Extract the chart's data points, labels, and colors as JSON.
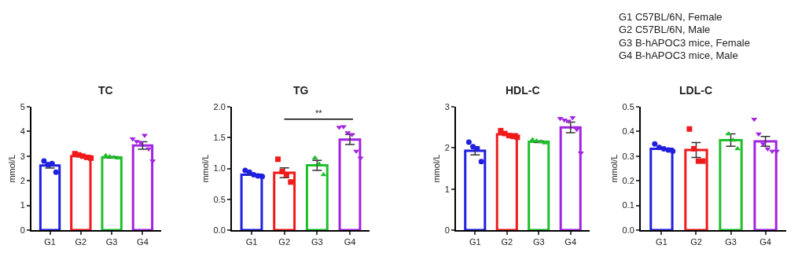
{
  "chart_data": [
    {
      "type": "bar",
      "title": "TC",
      "ylabel": "mmol/L",
      "categories": [
        "G1",
        "G2",
        "G3",
        "G4"
      ],
      "ylim": [
        0,
        5
      ],
      "yticks": [
        0,
        1,
        2,
        3,
        4,
        5
      ],
      "series": [
        {
          "values": [
            2.62,
            3.0,
            2.95,
            3.43
          ],
          "colors": [
            "#1f1fe0",
            "#f01a1a",
            "#1fbf2a",
            "#a224e0"
          ],
          "errors": [
            0.1,
            null,
            0.03,
            0.15
          ]
        },
        {
          "type": "scatter",
          "marker": "circle",
          "color": "#1f1fe0",
          "x": [
            "G1",
            "G1",
            "G1",
            "G1"
          ],
          "values": [
            2.8,
            2.65,
            2.7,
            2.35
          ]
        },
        {
          "type": "scatter",
          "marker": "square",
          "color": "#f01a1a",
          "x": [
            "G2",
            "G2",
            "G2",
            "G2",
            "G2"
          ],
          "values": [
            3.1,
            3.05,
            3.0,
            2.95,
            2.92
          ]
        },
        {
          "type": "scatter",
          "marker": "triangle",
          "color": "#1fbf2a",
          "x": [
            "G3",
            "G3",
            "G3",
            "G3"
          ],
          "values": [
            3.02,
            2.98,
            2.95,
            2.92
          ]
        },
        {
          "type": "scatter",
          "marker": "triangle-down",
          "color": "#a224e0",
          "x": [
            "G4",
            "G4",
            "G4",
            "G4",
            "G4",
            "G4"
          ],
          "values": [
            3.7,
            3.6,
            3.55,
            3.85,
            3.3,
            2.8
          ]
        }
      ]
    },
    {
      "type": "bar",
      "title": "TG",
      "ylabel": "mmol/L",
      "categories": [
        "G1",
        "G2",
        "G3",
        "G4"
      ],
      "ylim": [
        0,
        2
      ],
      "yticks": [
        {
          "value": 0,
          "label": "0.0"
        },
        {
          "value": 0.5,
          "label": "0.5"
        },
        {
          "value": 1,
          "label": "1.0"
        },
        {
          "value": 1.5,
          "label": "1.5"
        },
        {
          "value": 2,
          "label": "2.0"
        }
      ],
      "annotations": [
        "**"
      ],
      "series": [
        {
          "values": [
            0.9,
            0.93,
            1.05,
            1.47
          ],
          "colors": [
            "#1f1fe0",
            "#f01a1a",
            "#1fbf2a",
            "#a224e0"
          ],
          "errors": [
            null,
            0.08,
            0.08,
            0.08
          ]
        },
        {
          "type": "scatter",
          "marker": "circle",
          "color": "#1f1fe0",
          "x": [
            "G1",
            "G1",
            "G1",
            "G1",
            "G1"
          ],
          "values": [
            0.97,
            0.94,
            0.9,
            0.88,
            0.87
          ]
        },
        {
          "type": "scatter",
          "marker": "square",
          "color": "#f01a1a",
          "x": [
            "G2",
            "G2",
            "G2",
            "G2"
          ],
          "values": [
            1.15,
            0.95,
            0.9,
            0.78
          ]
        },
        {
          "type": "scatter",
          "marker": "triangle",
          "color": "#1fbf2a",
          "x": [
            "G3",
            "G3",
            "G3"
          ],
          "values": [
            1.17,
            1.07,
            0.9
          ]
        },
        {
          "type": "scatter",
          "marker": "triangle-down",
          "color": "#a224e0",
          "x": [
            "G4",
            "G4",
            "G4",
            "G4",
            "G4",
            "G4"
          ],
          "values": [
            1.67,
            1.68,
            1.58,
            1.55,
            1.28,
            1.17
          ]
        }
      ]
    },
    {
      "type": "bar",
      "title": "HDL-C",
      "ylabel": "mmol/L",
      "categories": [
        "G1",
        "G2",
        "G3",
        "G4"
      ],
      "ylim": [
        0,
        3
      ],
      "yticks": [
        0,
        1,
        2,
        3
      ],
      "series": [
        {
          "values": [
            1.93,
            2.33,
            2.15,
            2.5
          ],
          "colors": [
            "#1f1fe0",
            "#f01a1a",
            "#1fbf2a",
            "#a224e0"
          ],
          "errors": [
            0.1,
            null,
            0.02,
            0.13
          ]
        },
        {
          "type": "scatter",
          "marker": "circle",
          "color": "#1f1fe0",
          "x": [
            "G1",
            "G1",
            "G1",
            "G1"
          ],
          "values": [
            2.14,
            2.03,
            1.98,
            1.67
          ]
        },
        {
          "type": "scatter",
          "marker": "square",
          "color": "#f01a1a",
          "x": [
            "G2",
            "G2",
            "G2",
            "G2",
            "G2"
          ],
          "values": [
            2.42,
            2.35,
            2.3,
            2.28,
            2.26
          ]
        },
        {
          "type": "scatter",
          "marker": "triangle",
          "color": "#1fbf2a",
          "x": [
            "G3",
            "G3",
            "G3",
            "G3"
          ],
          "values": [
            2.2,
            2.17,
            2.15,
            2.12
          ]
        },
        {
          "type": "scatter",
          "marker": "triangle-down",
          "color": "#a224e0",
          "x": [
            "G4",
            "G4",
            "G4",
            "G4",
            "G4",
            "G4"
          ],
          "values": [
            2.72,
            2.68,
            2.65,
            2.74,
            2.45,
            1.88
          ]
        }
      ]
    },
    {
      "type": "bar",
      "title": "LDL-C",
      "ylabel": "mmol/L",
      "categories": [
        "G1",
        "G2",
        "G3",
        "G4"
      ],
      "ylim": [
        0,
        0.5
      ],
      "yticks": [
        {
          "value": 0,
          "label": "0.0"
        },
        0.1,
        0.2,
        0.3,
        0.4,
        0.5
      ],
      "series": [
        {
          "values": [
            0.33,
            0.325,
            0.365,
            0.36
          ],
          "colors": [
            "#1f1fe0",
            "#f01a1a",
            "#1fbf2a",
            "#a224e0"
          ],
          "errors": [
            null,
            0.03,
            0.025,
            0.02
          ]
        },
        {
          "type": "scatter",
          "marker": "circle",
          "color": "#1f1fe0",
          "x": [
            "G1",
            "G1",
            "G1",
            "G1",
            "G1"
          ],
          "values": [
            0.35,
            0.335,
            0.33,
            0.325,
            0.32
          ]
        },
        {
          "type": "scatter",
          "marker": "square",
          "color": "#f01a1a",
          "x": [
            "G2",
            "G2",
            "G2",
            "G2"
          ],
          "values": [
            0.41,
            0.33,
            0.28,
            0.28
          ]
        },
        {
          "type": "scatter",
          "marker": "triangle",
          "color": "#1fbf2a",
          "x": [
            "G3",
            "G3",
            "G3"
          ],
          "values": [
            0.39,
            0.365,
            0.33
          ]
        },
        {
          "type": "scatter",
          "marker": "triangle-down",
          "color": "#a224e0",
          "x": [
            "G4",
            "G4",
            "G4",
            "G4",
            "G4",
            "G4"
          ],
          "values": [
            0.45,
            0.39,
            0.35,
            0.33,
            0.32,
            0.32
          ]
        }
      ]
    },
    {
      "type": "other",
      "annotations": [
        "G1 C57BL/6N, Female",
        "G2 C57BL/6N, Male",
        "G3 B-hAPOC3 mice, Female",
        "G4 B-hAPOC3 mice, Male"
      ]
    }
  ]
}
